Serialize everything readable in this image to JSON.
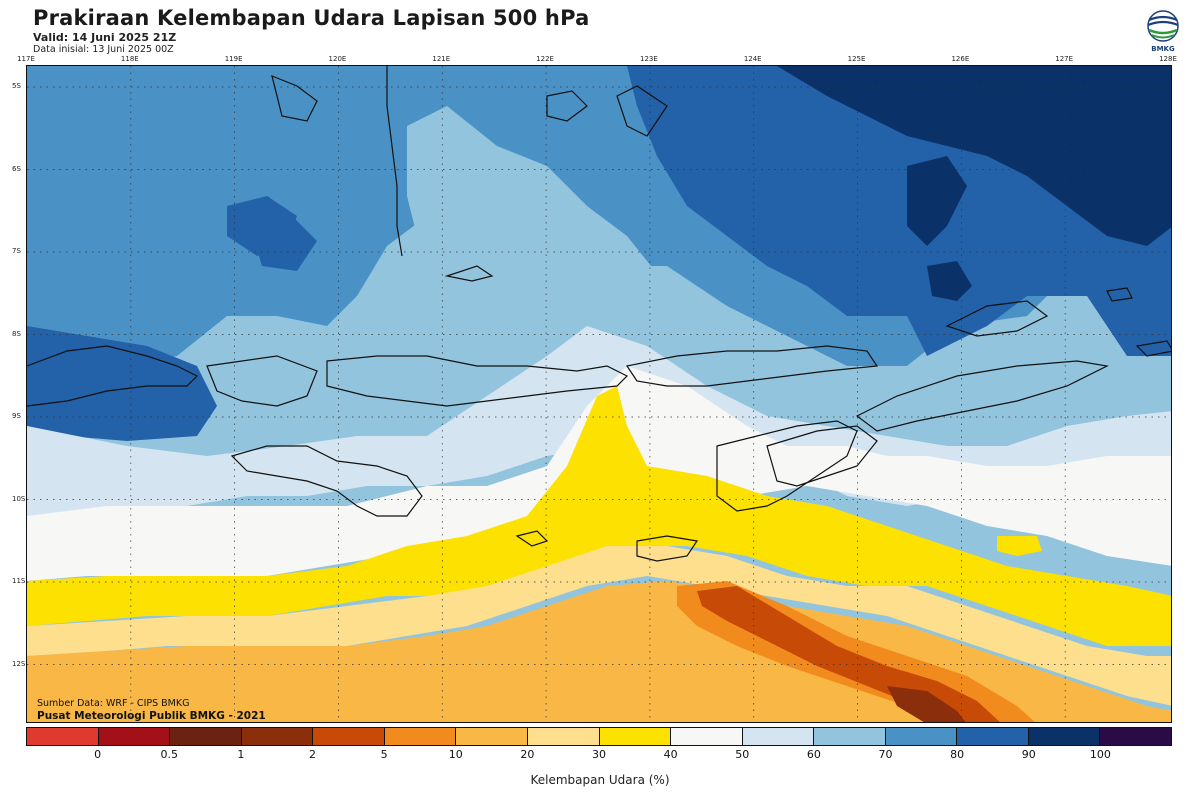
{
  "header": {
    "title": "Prakiraan Kelembapan Udara Lapisan 500 hPa",
    "valid": "Valid: 14 Juni 2025 21Z",
    "initial": "Data inisial: 13 Juni 2025 00Z",
    "logo_text": "BMKG"
  },
  "map": {
    "lon_labels": [
      "117E",
      "118E",
      "119E",
      "120E",
      "121E",
      "122E",
      "123E",
      "124E",
      "125E",
      "126E",
      "127E",
      "128E"
    ],
    "lat_labels": [
      "5S",
      "6S",
      "7S",
      "8S",
      "9S",
      "10S",
      "11S",
      "12S"
    ]
  },
  "footer": {
    "source": "Sumber Data: WRF - CIPS BMKG",
    "center": "Pusat Meteorologi Publik BMKG - 2021"
  },
  "legend": {
    "ticks": [
      "0",
      "0.5",
      "1",
      "2",
      "5",
      "10",
      "20",
      "30",
      "40",
      "50",
      "60",
      "70",
      "80",
      "90",
      "100"
    ],
    "label": "Kelembapan Udara (%)",
    "colors": [
      "#e03a2f",
      "#a31018",
      "#6b2211",
      "#8b2e0b",
      "#c84a07",
      "#f28b1e",
      "#f9b746",
      "#fddf8e",
      "#fde100",
      "#f7f7f5",
      "#d4e5f1",
      "#93c4de",
      "#4a92c6",
      "#2361a8",
      "#0b3268",
      "#2a0b45"
    ]
  }
}
